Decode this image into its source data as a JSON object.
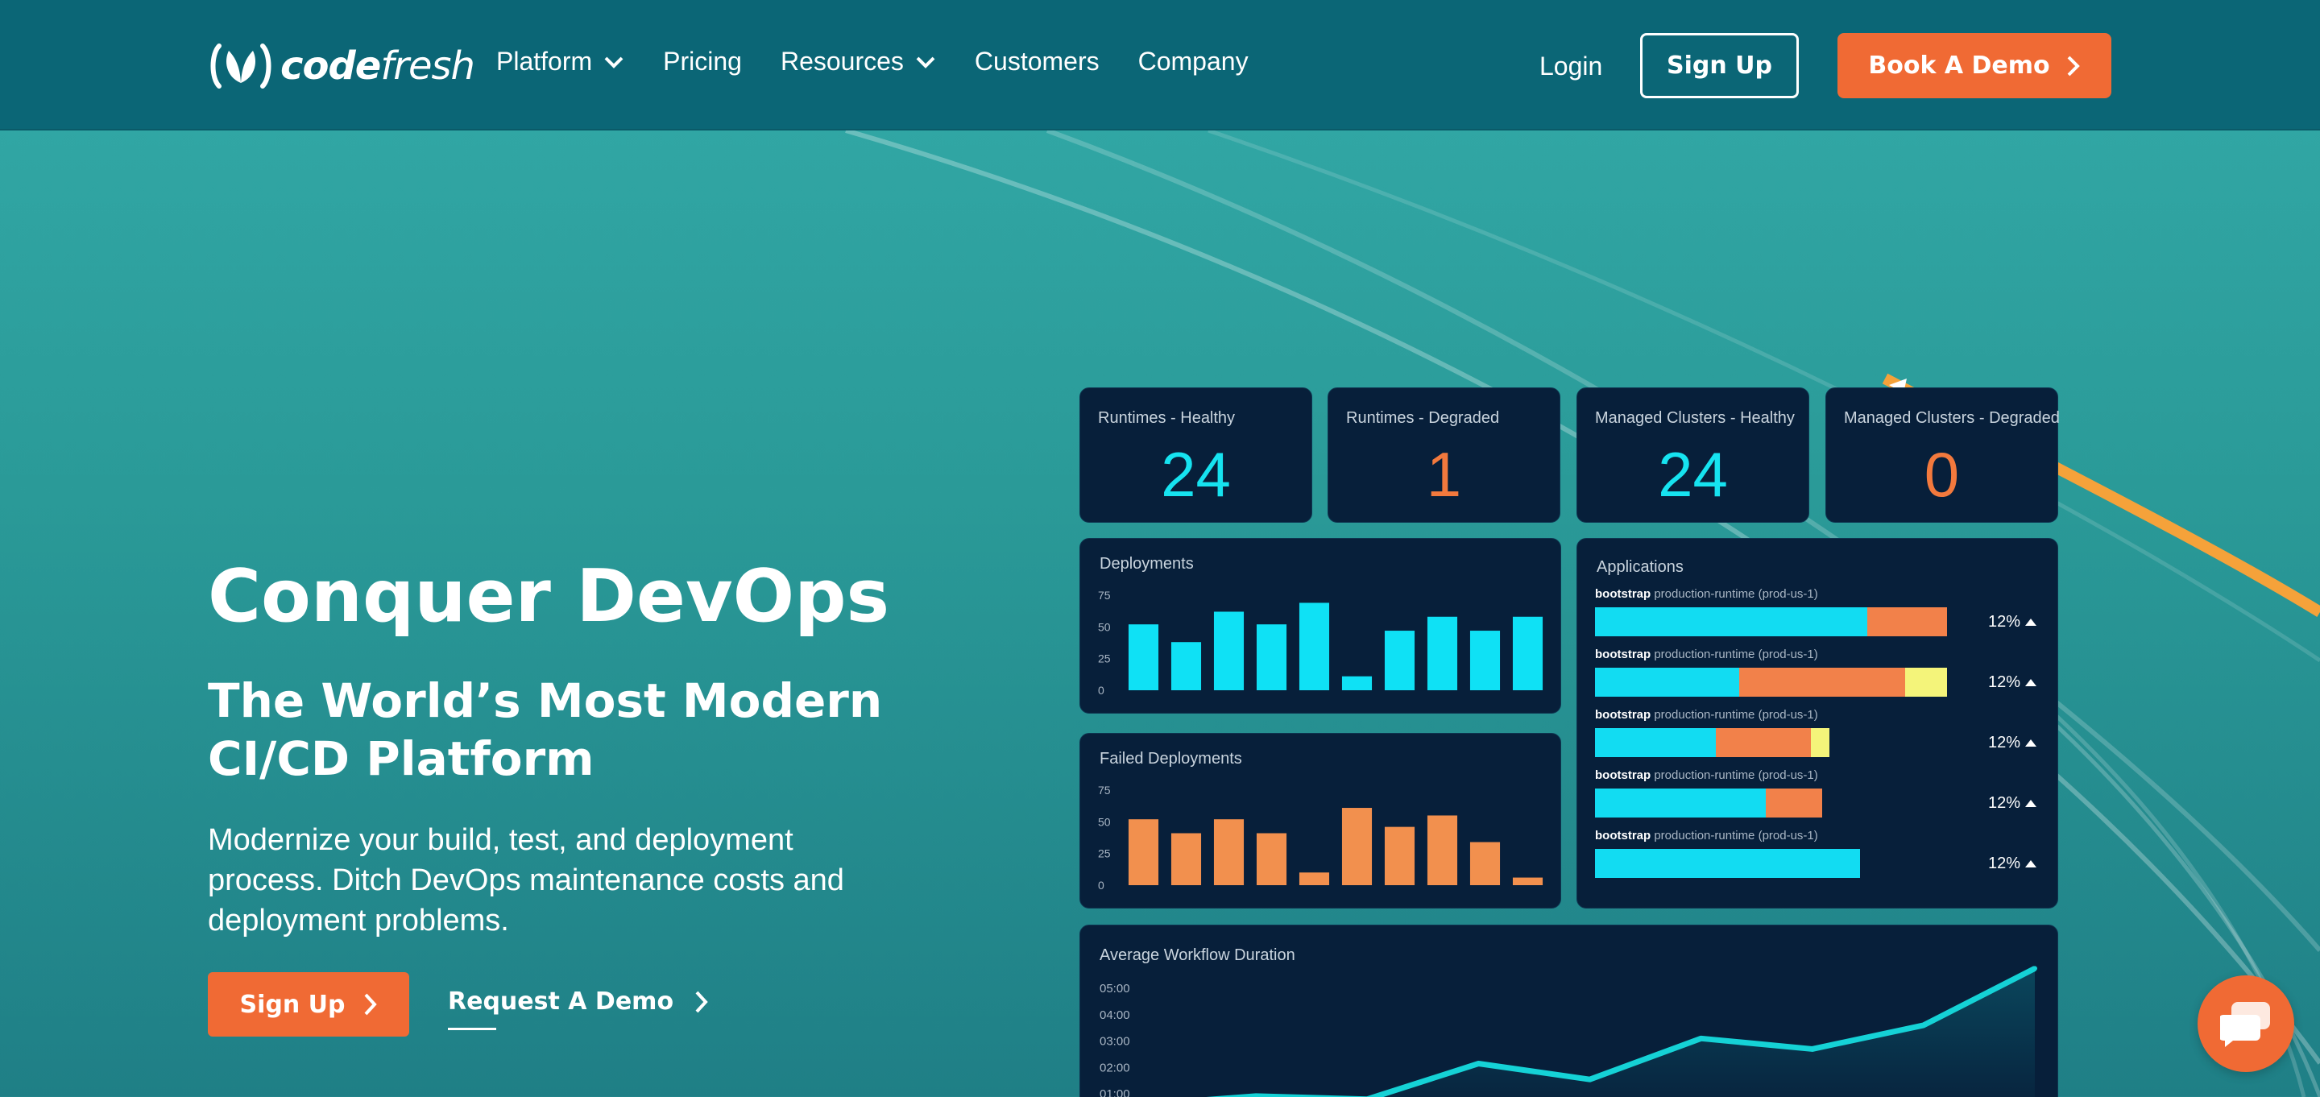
{
  "brand": {
    "logo_bold": "code",
    "logo_light": "fresh",
    "accent_color": "#f06a34",
    "nav_bg": "#0b6676",
    "dashboard_bg": "#071f3a"
  },
  "nav": {
    "links": [
      {
        "label": "Platform",
        "has_dropdown": true
      },
      {
        "label": "Pricing",
        "has_dropdown": false
      },
      {
        "label": "Resources",
        "has_dropdown": true
      },
      {
        "label": "Customers",
        "has_dropdown": false
      },
      {
        "label": "Company",
        "has_dropdown": false
      }
    ],
    "login": "Login",
    "signup": "Sign Up",
    "book_demo": "Book A Demo"
  },
  "hero": {
    "title": "Conquer DevOps",
    "subtitle_line1": "The World’s Most Modern",
    "subtitle_line2": "CI/CD Platform",
    "description": "Modernize your build, test, and deployment process. Ditch DevOps maintenance costs and deployment problems.",
    "signup": "Sign Up",
    "request_demo": "Request A Demo"
  },
  "dashboard": {
    "stats": [
      {
        "label": "Runtimes - Healthy",
        "value": "24",
        "tone": "cyan"
      },
      {
        "label": "Runtimes - Degraded",
        "value": "1",
        "tone": "orange"
      },
      {
        "label": "Managed Clusters - Healthy",
        "value": "24",
        "tone": "cyan"
      },
      {
        "label": "Managed Clusters - Degraded",
        "value": "0",
        "tone": "orange"
      }
    ],
    "applications": {
      "title": "Applications",
      "rows": [
        {
          "name": "bootstrap",
          "runtime": "production-runtime (prod-us-1)",
          "pct": "12%",
          "segments": [
            0.72,
            0.21,
            0
          ]
        },
        {
          "name": "bootstrap",
          "runtime": "production-runtime (prod-us-1)",
          "pct": "12%",
          "segments": [
            0.38,
            0.44,
            0.11
          ]
        },
        {
          "name": "bootstrap",
          "runtime": "production-runtime (prod-us-1)",
          "pct": "12%",
          "segments": [
            0.32,
            0.25,
            0.05
          ]
        },
        {
          "name": "bootstrap",
          "runtime": "production-runtime (prod-us-1)",
          "pct": "12%",
          "segments": [
            0.45,
            0.15,
            0
          ]
        },
        {
          "name": "bootstrap",
          "runtime": "production-runtime (prod-us-1)",
          "pct": "12%",
          "segments": [
            0.7,
            0,
            0
          ]
        }
      ]
    }
  },
  "chart_data": [
    {
      "type": "bar",
      "title": "Deployments",
      "y_ticks": [
        "75",
        "50",
        "25",
        "0"
      ],
      "ylim": [
        0,
        75
      ],
      "values": [
        52,
        38,
        62,
        52,
        69,
        11,
        47,
        58,
        47,
        58
      ],
      "color": "#0fe1f5"
    },
    {
      "type": "bar",
      "title": "Failed Deployments",
      "y_ticks": [
        "75",
        "50",
        "25",
        "0"
      ],
      "ylim": [
        0,
        75
      ],
      "values": [
        52,
        41,
        52,
        41,
        10,
        61,
        46,
        55,
        34,
        6
      ],
      "color": "#f2904e"
    },
    {
      "type": "area",
      "title": "Average Workflow Duration",
      "y_ticks": [
        "05:00",
        "04:00",
        "03:00",
        "02:00",
        "01:00"
      ],
      "ylim": [
        0,
        5
      ],
      "values": [
        0.6,
        0.92,
        0.8,
        2.15,
        1.55,
        3.1,
        2.7,
        3.6,
        5.75
      ],
      "color": "#15d2d6"
    }
  ],
  "chat": {
    "icon": "chat-bubble-icon"
  }
}
